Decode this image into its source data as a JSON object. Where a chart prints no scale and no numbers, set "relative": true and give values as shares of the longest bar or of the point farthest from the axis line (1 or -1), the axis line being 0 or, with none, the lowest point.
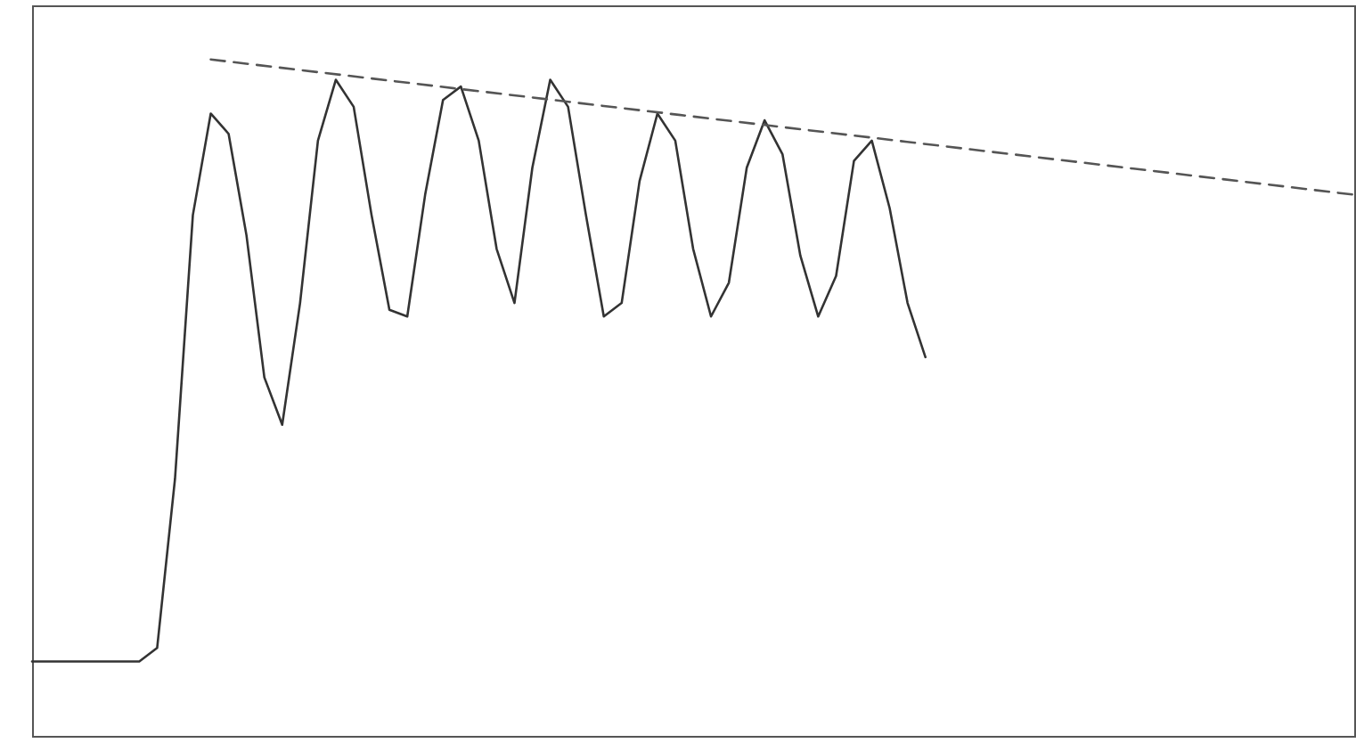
{
  "chart_data": {
    "type": "line",
    "relative": true,
    "categories": [
      null,
      null,
      null,
      null,
      null,
      null,
      null,
      null,
      null,
      null,
      null,
      null,
      null,
      null,
      null,
      null,
      null,
      null,
      null,
      null,
      null,
      null,
      null,
      null,
      null,
      null,
      null,
      null,
      null,
      null,
      null,
      null,
      null,
      null,
      null,
      null,
      null,
      null,
      null,
      null,
      null,
      null,
      null,
      null,
      null,
      null,
      null,
      null,
      null,
      null,
      null,
      null,
      null,
      null,
      null,
      null,
      null,
      null,
      null,
      null,
      null,
      null,
      null,
      null,
      null,
      null,
      null,
      null,
      null,
      null,
      null,
      null,
      null,
      null,
      null
    ],
    "series": [
      {
        "color": "#333333",
        "line_style": "solid",
        "values": [
          0.11,
          0.11,
          0.11,
          0.11,
          0.11,
          0.11,
          0.11,
          0.13,
          0.38,
          0.77,
          0.92,
          0.89,
          0.74,
          0.53,
          0.46,
          0.64,
          0.88,
          0.97,
          0.93,
          0.77,
          0.63,
          0.62,
          0.8,
          0.94,
          0.96,
          0.88,
          0.72,
          0.64,
          0.84,
          0.97,
          0.93,
          0.77,
          0.62,
          0.64,
          0.82,
          0.92,
          0.88,
          0.72,
          0.62,
          0.67,
          0.84,
          0.91,
          0.86,
          0.71,
          0.62,
          0.68,
          0.85,
          0.88,
          0.78,
          0.64,
          0.56,
          null,
          null,
          null,
          null,
          null,
          null,
          null,
          null,
          null,
          null,
          null,
          null,
          null,
          null,
          null,
          null,
          null,
          null,
          null,
          null,
          null,
          null,
          null,
          null
        ]
      },
      {
        "type": "line",
        "color": "#555555",
        "line_style": "dashed",
        "values": [
          null,
          null,
          null,
          null,
          null,
          null,
          null,
          null,
          null,
          null,
          1.0,
          null,
          null,
          null,
          null,
          null,
          null,
          null,
          null,
          null,
          null,
          null,
          null,
          null,
          null,
          null,
          null,
          null,
          null,
          null,
          null,
          null,
          null,
          null,
          null,
          null,
          null,
          null,
          null,
          null,
          null,
          null,
          null,
          null,
          null,
          null,
          null,
          null,
          null,
          null,
          null,
          null,
          null,
          null,
          null,
          null,
          null,
          null,
          null,
          null,
          null,
          null,
          null,
          null,
          null,
          null,
          null,
          null,
          null,
          null,
          null,
          null,
          null,
          null,
          0.8
        ]
      }
    ]
  }
}
